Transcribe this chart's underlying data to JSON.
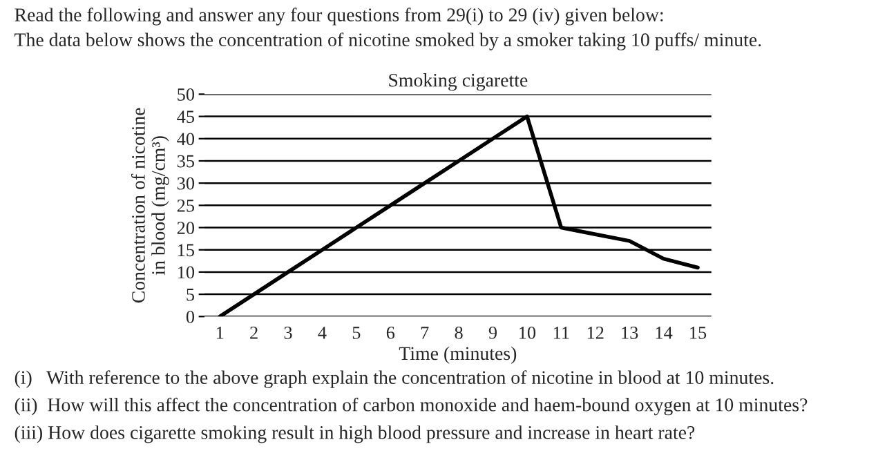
{
  "chart_data": {
    "type": "line",
    "title": "Smoking cigarette",
    "xlabel": "Time (minutes)",
    "ylabel": "Concentration of nicotine\nin blood (mg/cm³)",
    "categories": [
      "1",
      "2",
      "3",
      "4",
      "5",
      "6",
      "7",
      "8",
      "9",
      "10",
      "11",
      "12",
      "13",
      "14",
      "15"
    ],
    "series": [
      {
        "color": "#000000",
        "values": [
          0,
          5,
          10,
          15,
          20,
          25,
          30,
          35,
          40,
          45,
          20,
          18.5,
          17,
          13,
          11
        ]
      }
    ],
    "ylim": [
      0,
      50
    ],
    "yticks": [
      0,
      5,
      10,
      15,
      20,
      25,
      30,
      35,
      40,
      45,
      50
    ],
    "grid": "y",
    "marker": "none",
    "line_style": "solid",
    "annotations": [
      "Read the following and answer any four questions from 29(i) to 29 (iv) given below:",
      "The data below shows the concentration of nicotine smoked by a smoker taking 10 puffs/ minute.",
      "(i)   With reference to the above graph explain the concentration of nicotine in blood at 10 minutes.",
      "(ii)  How will this affect the concentration of carbon monoxide and haem-bound oxygen at 10 minutes?",
      "(iii) How does cigarette smoking result in high blood pressure and increase in heart rate?"
    ]
  }
}
